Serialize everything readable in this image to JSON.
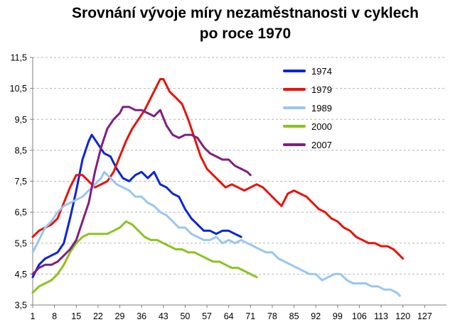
{
  "chart_data": {
    "type": "line",
    "title_line1": "Srovnání vývoje míry nezaměstnanosti v cyklech",
    "title_line2": "po roce 1970",
    "xlabel": "",
    "ylabel": "",
    "xlim": [
      1,
      134
    ],
    "ylim": [
      3.5,
      11.5
    ],
    "x_ticks": [
      "1",
      "8",
      "15",
      "22",
      "29",
      "36",
      "43",
      "50",
      "57",
      "64",
      "71",
      "78",
      "85",
      "92",
      "99",
      "106",
      "113",
      "120",
      "127"
    ],
    "x_tick_values": [
      1,
      8,
      15,
      22,
      29,
      36,
      43,
      50,
      57,
      64,
      71,
      78,
      85,
      92,
      99,
      106,
      113,
      120,
      127
    ],
    "y_ticks": [
      "3,5",
      "4,5",
      "5,5",
      "6,5",
      "7,5",
      "8,5",
      "9,5",
      "10,5",
      "11,5"
    ],
    "y_tick_values": [
      3.5,
      4.5,
      5.5,
      6.5,
      7.5,
      8.5,
      9.5,
      10.5,
      11.5
    ],
    "grid": "horizontal-dashed",
    "legend_position": "upper-right",
    "series": [
      {
        "name": "1974",
        "color": "#0a24d8",
        "points": [
          [
            1,
            4.4
          ],
          [
            3,
            4.8
          ],
          [
            5,
            5.0
          ],
          [
            7,
            5.1
          ],
          [
            9,
            5.2
          ],
          [
            11,
            5.5
          ],
          [
            13,
            6.3
          ],
          [
            15,
            7.2
          ],
          [
            17,
            8.2
          ],
          [
            19,
            8.8
          ],
          [
            20,
            9.0
          ],
          [
            22,
            8.7
          ],
          [
            24,
            8.4
          ],
          [
            26,
            8.3
          ],
          [
            28,
            7.9
          ],
          [
            30,
            7.6
          ],
          [
            32,
            7.5
          ],
          [
            34,
            7.7
          ],
          [
            36,
            7.8
          ],
          [
            38,
            7.6
          ],
          [
            40,
            7.8
          ],
          [
            42,
            7.4
          ],
          [
            44,
            7.3
          ],
          [
            46,
            7.1
          ],
          [
            48,
            7.0
          ],
          [
            50,
            6.6
          ],
          [
            52,
            6.3
          ],
          [
            54,
            6.1
          ],
          [
            56,
            5.9
          ],
          [
            58,
            5.9
          ],
          [
            60,
            5.8
          ],
          [
            62,
            5.9
          ],
          [
            64,
            5.9
          ],
          [
            66,
            5.8
          ],
          [
            68,
            5.7
          ]
        ]
      },
      {
        "name": "1979",
        "color": "#e8130b",
        "points": [
          [
            1,
            5.7
          ],
          [
            3,
            5.9
          ],
          [
            5,
            6.0
          ],
          [
            7,
            6.1
          ],
          [
            9,
            6.3
          ],
          [
            11,
            6.8
          ],
          [
            13,
            7.3
          ],
          [
            15,
            7.7
          ],
          [
            17,
            7.7
          ],
          [
            19,
            7.5
          ],
          [
            21,
            7.3
          ],
          [
            23,
            7.4
          ],
          [
            25,
            7.5
          ],
          [
            27,
            7.8
          ],
          [
            29,
            8.3
          ],
          [
            31,
            8.8
          ],
          [
            33,
            9.2
          ],
          [
            35,
            9.5
          ],
          [
            37,
            9.8
          ],
          [
            39,
            10.2
          ],
          [
            41,
            10.6
          ],
          [
            42,
            10.8
          ],
          [
            43,
            10.8
          ],
          [
            45,
            10.4
          ],
          [
            47,
            10.2
          ],
          [
            49,
            10.0
          ],
          [
            51,
            9.5
          ],
          [
            53,
            8.9
          ],
          [
            55,
            8.3
          ],
          [
            57,
            7.9
          ],
          [
            59,
            7.7
          ],
          [
            61,
            7.5
          ],
          [
            63,
            7.3
          ],
          [
            65,
            7.4
          ],
          [
            67,
            7.3
          ],
          [
            69,
            7.2
          ],
          [
            71,
            7.3
          ],
          [
            73,
            7.4
          ],
          [
            75,
            7.3
          ],
          [
            77,
            7.1
          ],
          [
            79,
            6.9
          ],
          [
            81,
            6.7
          ],
          [
            83,
            7.1
          ],
          [
            85,
            7.2
          ],
          [
            87,
            7.1
          ],
          [
            89,
            7.0
          ],
          [
            91,
            6.8
          ],
          [
            93,
            6.6
          ],
          [
            95,
            6.5
          ],
          [
            97,
            6.3
          ],
          [
            99,
            6.2
          ],
          [
            101,
            6.0
          ],
          [
            103,
            5.9
          ],
          [
            105,
            5.7
          ],
          [
            107,
            5.6
          ],
          [
            109,
            5.5
          ],
          [
            111,
            5.5
          ],
          [
            113,
            5.4
          ],
          [
            115,
            5.4
          ],
          [
            117,
            5.3
          ],
          [
            119,
            5.1
          ],
          [
            120,
            5.0
          ]
        ]
      },
      {
        "name": "1989",
        "color": "#9ac6ee",
        "points": [
          [
            1,
            5.2
          ],
          [
            3,
            5.6
          ],
          [
            5,
            6.0
          ],
          [
            7,
            6.2
          ],
          [
            9,
            6.5
          ],
          [
            11,
            6.7
          ],
          [
            13,
            6.8
          ],
          [
            15,
            6.9
          ],
          [
            17,
            7.0
          ],
          [
            19,
            7.2
          ],
          [
            21,
            7.4
          ],
          [
            23,
            7.6
          ],
          [
            24,
            7.8
          ],
          [
            26,
            7.6
          ],
          [
            28,
            7.4
          ],
          [
            30,
            7.3
          ],
          [
            32,
            7.2
          ],
          [
            34,
            7.0
          ],
          [
            36,
            7.0
          ],
          [
            38,
            6.8
          ],
          [
            40,
            6.7
          ],
          [
            42,
            6.5
          ],
          [
            44,
            6.4
          ],
          [
            46,
            6.2
          ],
          [
            48,
            6.0
          ],
          [
            50,
            6.0
          ],
          [
            52,
            5.8
          ],
          [
            54,
            5.7
          ],
          [
            56,
            5.6
          ],
          [
            58,
            5.6
          ],
          [
            60,
            5.7
          ],
          [
            62,
            5.5
          ],
          [
            64,
            5.6
          ],
          [
            66,
            5.5
          ],
          [
            68,
            5.6
          ],
          [
            70,
            5.5
          ],
          [
            72,
            5.4
          ],
          [
            74,
            5.3
          ],
          [
            76,
            5.2
          ],
          [
            78,
            5.2
          ],
          [
            80,
            5.0
          ],
          [
            82,
            4.9
          ],
          [
            84,
            4.8
          ],
          [
            86,
            4.7
          ],
          [
            88,
            4.6
          ],
          [
            90,
            4.5
          ],
          [
            92,
            4.5
          ],
          [
            94,
            4.3
          ],
          [
            96,
            4.4
          ],
          [
            98,
            4.5
          ],
          [
            100,
            4.5
          ],
          [
            102,
            4.3
          ],
          [
            104,
            4.2
          ],
          [
            106,
            4.2
          ],
          [
            108,
            4.2
          ],
          [
            110,
            4.1
          ],
          [
            112,
            4.1
          ],
          [
            114,
            4.0
          ],
          [
            116,
            4.0
          ],
          [
            118,
            3.9
          ],
          [
            119,
            3.8
          ]
        ]
      },
      {
        "name": "2000",
        "color": "#8dc21f",
        "points": [
          [
            1,
            3.9
          ],
          [
            3,
            4.1
          ],
          [
            5,
            4.2
          ],
          [
            7,
            4.3
          ],
          [
            9,
            4.5
          ],
          [
            11,
            4.8
          ],
          [
            13,
            5.2
          ],
          [
            15,
            5.5
          ],
          [
            17,
            5.7
          ],
          [
            19,
            5.8
          ],
          [
            21,
            5.8
          ],
          [
            23,
            5.8
          ],
          [
            25,
            5.8
          ],
          [
            27,
            5.9
          ],
          [
            29,
            6.0
          ],
          [
            31,
            6.2
          ],
          [
            33,
            6.1
          ],
          [
            35,
            5.9
          ],
          [
            37,
            5.7
          ],
          [
            39,
            5.6
          ],
          [
            41,
            5.6
          ],
          [
            43,
            5.5
          ],
          [
            45,
            5.4
          ],
          [
            47,
            5.3
          ],
          [
            49,
            5.3
          ],
          [
            51,
            5.2
          ],
          [
            53,
            5.2
          ],
          [
            55,
            5.1
          ],
          [
            57,
            5.0
          ],
          [
            59,
            4.9
          ],
          [
            61,
            4.9
          ],
          [
            63,
            4.8
          ],
          [
            65,
            4.7
          ],
          [
            67,
            4.7
          ],
          [
            69,
            4.6
          ],
          [
            71,
            4.5
          ],
          [
            73,
            4.4
          ]
        ]
      },
      {
        "name": "2007",
        "color": "#7e1f80",
        "points": [
          [
            1,
            4.5
          ],
          [
            3,
            4.7
          ],
          [
            5,
            4.8
          ],
          [
            7,
            4.8
          ],
          [
            9,
            4.9
          ],
          [
            11,
            5.1
          ],
          [
            13,
            5.3
          ],
          [
            15,
            5.6
          ],
          [
            17,
            6.2
          ],
          [
            19,
            6.8
          ],
          [
            21,
            7.8
          ],
          [
            23,
            8.6
          ],
          [
            25,
            9.2
          ],
          [
            27,
            9.5
          ],
          [
            29,
            9.7
          ],
          [
            30,
            9.9
          ],
          [
            32,
            9.9
          ],
          [
            34,
            9.8
          ],
          [
            36,
            9.8
          ],
          [
            38,
            9.7
          ],
          [
            40,
            9.6
          ],
          [
            41,
            9.7
          ],
          [
            42,
            9.8
          ],
          [
            44,
            9.3
          ],
          [
            46,
            9.0
          ],
          [
            48,
            8.9
          ],
          [
            50,
            9.0
          ],
          [
            52,
            9.0
          ],
          [
            54,
            8.9
          ],
          [
            56,
            8.6
          ],
          [
            58,
            8.4
          ],
          [
            60,
            8.3
          ],
          [
            62,
            8.2
          ],
          [
            64,
            8.2
          ],
          [
            66,
            8.0
          ],
          [
            68,
            7.9
          ],
          [
            70,
            7.8
          ],
          [
            71,
            7.7
          ]
        ]
      }
    ]
  }
}
